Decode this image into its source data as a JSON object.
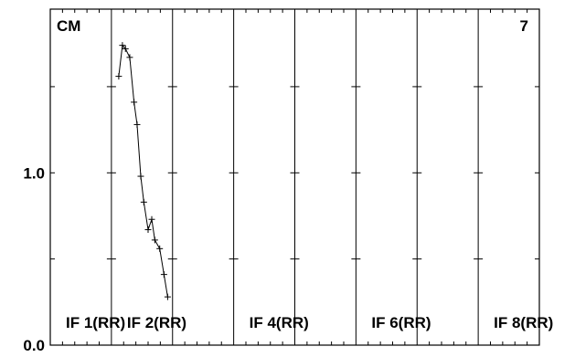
{
  "chart_data": {
    "type": "line",
    "corner_labels": {
      "left": "CM",
      "right": "7"
    },
    "y_tick_labels": [
      "0.0",
      "1.0"
    ],
    "ylim": [
      0.0,
      1.95
    ],
    "grid": false,
    "panels": [
      {
        "label": "IF 1(RR)"
      },
      {
        "label": "IF 2(RR)"
      },
      {
        "label": ""
      },
      {
        "label": "IF 4(RR)"
      },
      {
        "label": ""
      },
      {
        "label": "IF 6(RR)"
      },
      {
        "label": ""
      },
      {
        "label": "IF 8(RR)"
      }
    ],
    "series": [
      {
        "panel_index": 1,
        "x": [
          0.12,
          0.18,
          0.23,
          0.3,
          0.37,
          0.42,
          0.48,
          0.53,
          0.6,
          0.66,
          0.71,
          0.79,
          0.86,
          0.92
        ],
        "values": [
          1.56,
          1.74,
          1.72,
          1.67,
          1.41,
          1.28,
          0.98,
          0.83,
          0.67,
          0.73,
          0.61,
          0.56,
          0.41,
          0.28
        ]
      }
    ]
  }
}
